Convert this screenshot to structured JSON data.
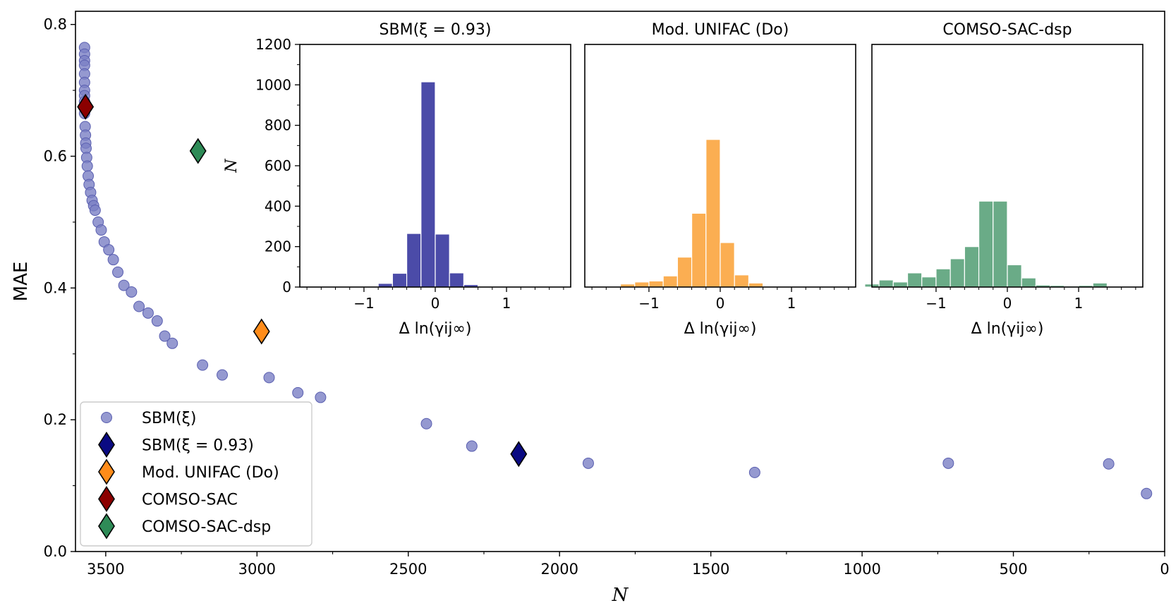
{
  "chart_data": [
    {
      "type": "scatter",
      "xlabel": "N",
      "ylabel": "MAE",
      "xlim": [
        3600,
        0
      ],
      "ylim": [
        0.0,
        0.82
      ],
      "x_ticks": [
        3500,
        3000,
        2500,
        2000,
        1500,
        1000,
        500,
        0
      ],
      "y_ticks": [
        0.0,
        0.2,
        0.4,
        0.6,
        0.8
      ],
      "series": [
        {
          "name": "SBM(ξ)",
          "marker": "circle",
          "color": "#7b7fc4",
          "x": [
            3570,
            3570,
            3570,
            3570,
            3570,
            3570,
            3570,
            3570,
            3570,
            3570,
            3570,
            3568,
            3567,
            3566,
            3565,
            3563,
            3561,
            3558,
            3555,
            3550,
            3545,
            3540,
            3535,
            3525,
            3515,
            3505,
            3490,
            3475,
            3460,
            3440,
            3415,
            3390,
            3360,
            3330,
            3305,
            3280,
            3180,
            3115,
            2960,
            2865,
            2790,
            2440,
            2290,
            1905,
            1355,
            715,
            185,
            60
          ],
          "y": [
            0.765,
            0.755,
            0.745,
            0.738,
            0.725,
            0.712,
            0.7,
            0.692,
            0.683,
            0.675,
            0.665,
            0.645,
            0.632,
            0.62,
            0.612,
            0.598,
            0.585,
            0.57,
            0.557,
            0.545,
            0.533,
            0.525,
            0.518,
            0.5,
            0.488,
            0.47,
            0.458,
            0.443,
            0.424,
            0.404,
            0.394,
            0.372,
            0.362,
            0.35,
            0.327,
            0.316,
            0.283,
            0.268,
            0.264,
            0.241,
            0.234,
            0.194,
            0.16,
            0.134,
            0.12,
            0.134,
            0.133,
            0.088
          ]
        },
        {
          "name": "SBM(ξ = 0.93)",
          "marker": "diamond",
          "color": "#0a0a82",
          "x": [
            2135
          ],
          "y": [
            0.148
          ]
        },
        {
          "name": "Mod. UNIFAC (Do)",
          "marker": "diamond",
          "color": "#ff8c1a",
          "x": [
            2985
          ],
          "y": [
            0.334
          ]
        },
        {
          "name": "COMSO-SAC",
          "marker": "diamond",
          "color": "#8b0000",
          "x": [
            3567
          ],
          "y": [
            0.675
          ]
        },
        {
          "name": "COMSO-SAC-dsp",
          "marker": "diamond",
          "color": "#2e8b57",
          "x": [
            3195
          ],
          "y": [
            0.608
          ]
        }
      ],
      "legend": {
        "placement": "lower-left",
        "entries": [
          "SBM(ξ)",
          "SBM(ξ = 0.93)",
          "Mod. UNIFAC (Do)",
          "COMSO-SAC",
          "COMSO-SAC-dsp"
        ]
      }
    },
    {
      "type": "bar",
      "title": "SBM(ξ = 0.93)",
      "xlabel": "Δ ln(γij∞)",
      "ylabel": "N",
      "color": "#4b4ba8",
      "xlim": [
        -1.9,
        1.9
      ],
      "ylim": [
        0,
        1200
      ],
      "x_ticks": [
        -1,
        0,
        1
      ],
      "x_tick_labels": [
        "−1",
        "0",
        "1"
      ],
      "y_ticks": [
        0,
        200,
        400,
        600,
        800,
        1000,
        1200
      ],
      "bin_width": 0.2,
      "bin_centers": [
        -1.1,
        -0.9,
        -0.7,
        -0.5,
        -0.3,
        -0.1,
        0.1,
        0.3,
        0.5,
        0.7,
        0.9
      ],
      "values": [
        1,
        3,
        18,
        68,
        265,
        1015,
        262,
        70,
        12,
        3,
        1
      ]
    },
    {
      "type": "bar",
      "title": "Mod. UNIFAC (Do)",
      "xlabel": "Δ ln(γij∞)",
      "color": "#fbae52",
      "xlim": [
        -1.9,
        1.9
      ],
      "ylim": [
        0,
        1200
      ],
      "x_ticks": [
        -1,
        0,
        1
      ],
      "x_tick_labels": [
        "−1",
        "0",
        "1"
      ],
      "bin_width": 0.2,
      "bin_centers": [
        -1.3,
        -1.1,
        -0.9,
        -0.7,
        -0.5,
        -0.3,
        -0.1,
        0.1,
        0.3,
        0.5,
        0.7,
        0.9
      ],
      "values": [
        15,
        25,
        30,
        55,
        148,
        365,
        730,
        220,
        60,
        20,
        4,
        2
      ]
    },
    {
      "type": "bar",
      "title": "COMSO-SAC-dsp",
      "xlabel": "Δ ln(γij∞)",
      "color": "#6aab87",
      "xlim": [
        -1.9,
        1.9
      ],
      "ylim": [
        0,
        1200
      ],
      "x_ticks": [
        -1,
        0,
        1
      ],
      "x_tick_labels": [
        "−1",
        "0",
        "1"
      ],
      "bin_width": 0.2,
      "bin_centers": [
        -1.9,
        -1.7,
        -1.5,
        -1.3,
        -1.1,
        -0.9,
        -0.7,
        -0.5,
        -0.3,
        -0.1,
        0.1,
        0.3,
        0.5,
        0.7,
        0.9,
        1.1,
        1.3
      ],
      "values": [
        15,
        35,
        25,
        70,
        50,
        90,
        140,
        200,
        425,
        425,
        110,
        45,
        10,
        8,
        5,
        8,
        20
      ]
    }
  ]
}
